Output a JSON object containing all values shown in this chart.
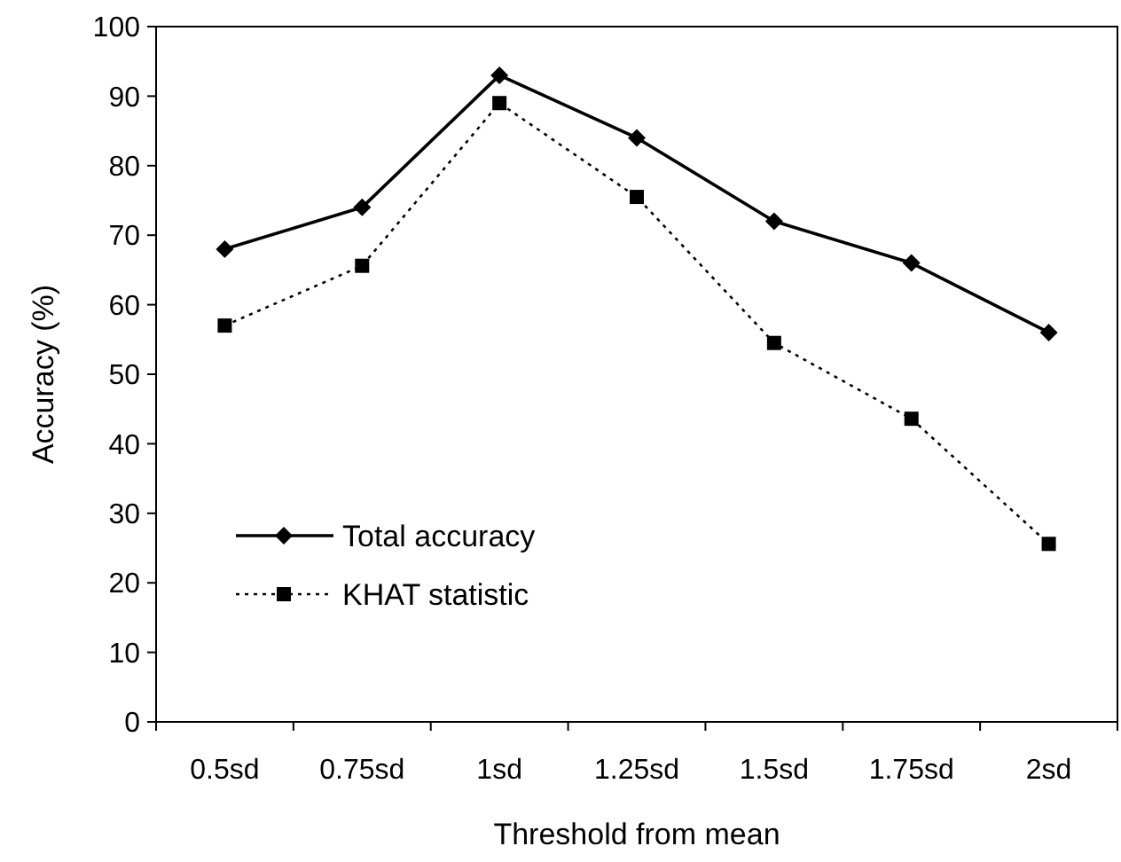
{
  "chart_data": {
    "type": "line",
    "xlabel": "Threshold from mean",
    "ylabel": "Accuracy (%)",
    "categories": [
      "0.5sd",
      "0.75sd",
      "1sd",
      "1.25sd",
      "1.5sd",
      "1.75sd",
      "2sd"
    ],
    "series": [
      {
        "name": "Total accuracy",
        "color": "#000000",
        "values": [
          68,
          74,
          93,
          84,
          72,
          66,
          56
        ],
        "marker": "diamond",
        "line_style": "solid"
      },
      {
        "name": "KHAT statistic",
        "color": "#000000",
        "values": [
          57,
          65.6,
          89,
          75.5,
          54.5,
          43.6,
          25.6
        ],
        "marker": "square",
        "line_style": "dotted"
      }
    ],
    "ylim": [
      0,
      100
    ],
    "yticks": [
      0,
      10,
      20,
      30,
      40,
      50,
      60,
      70,
      80,
      90,
      100
    ],
    "grid": false,
    "legend": "bottom left"
  }
}
